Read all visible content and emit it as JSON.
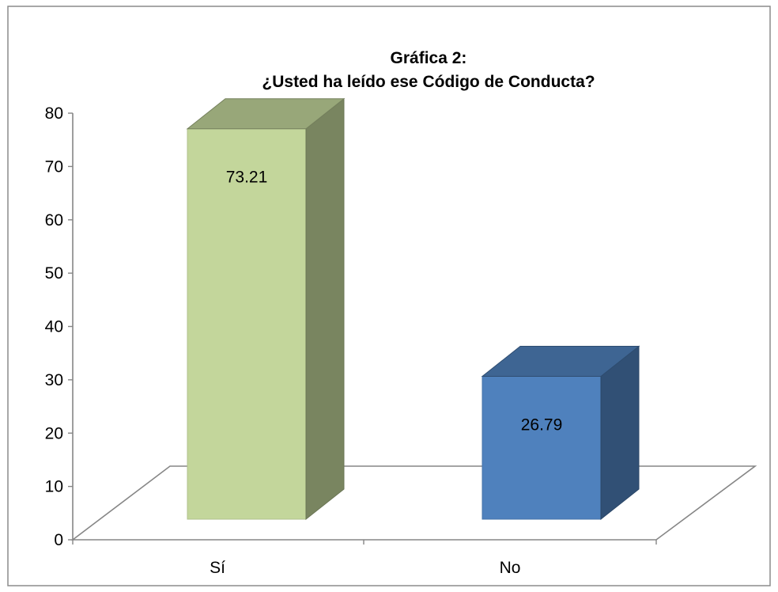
{
  "chart_data": {
    "type": "bar",
    "title_line1": "Gráfica 2:",
    "title_line2": "¿Usted ha leído ese Código de Conducta?",
    "categories": [
      "Sí",
      "No"
    ],
    "values": [
      73.21,
      26.79
    ],
    "value_labels": [
      "73.21",
      "26.79"
    ],
    "ylim": [
      0,
      80
    ],
    "y_ticks": [
      "0",
      "10",
      "20",
      "30",
      "40",
      "50",
      "60",
      "70",
      "80"
    ],
    "bar_colors": [
      "#c3d69b",
      "#4f81bd"
    ],
    "grid": false,
    "legend": "none"
  }
}
